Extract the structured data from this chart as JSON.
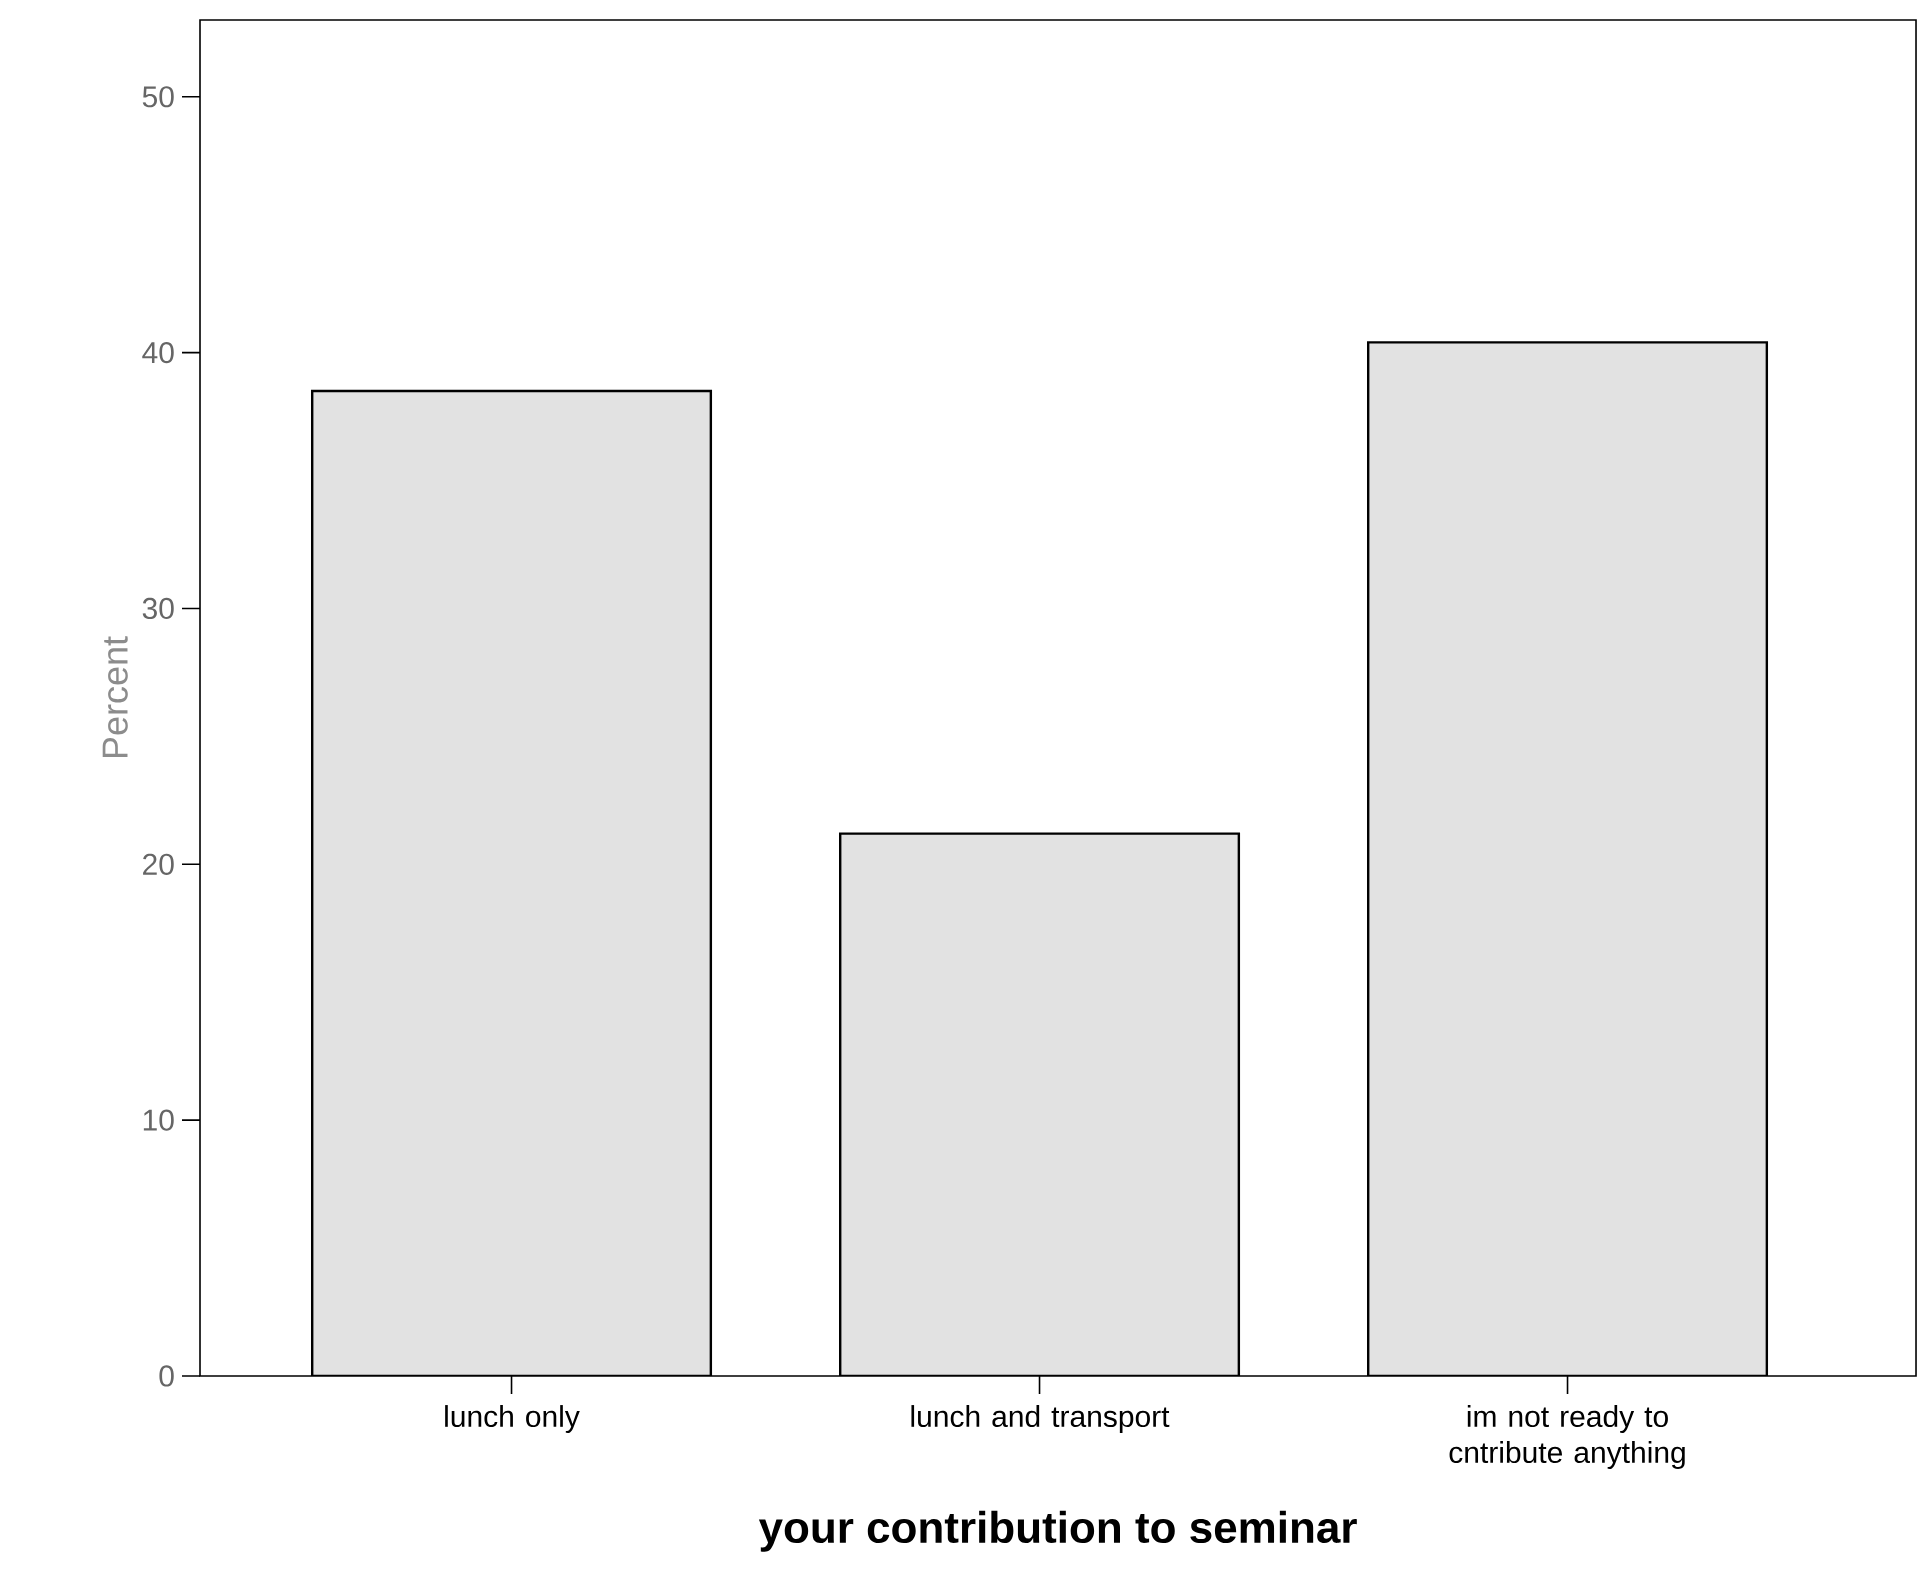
{
  "chart_data": {
    "type": "bar",
    "xlabel": "your contribution to seminar",
    "ylabel": "Percent",
    "categories": [
      "lunch only",
      "lunch and transport",
      "im not ready to cntribute anything"
    ],
    "values": [
      38.5,
      21.2,
      40.4
    ],
    "color": "#e2e2e2",
    "ylim": [
      0,
      53
    ],
    "yticks": [
      0,
      10,
      20,
      30,
      40,
      50
    ]
  }
}
